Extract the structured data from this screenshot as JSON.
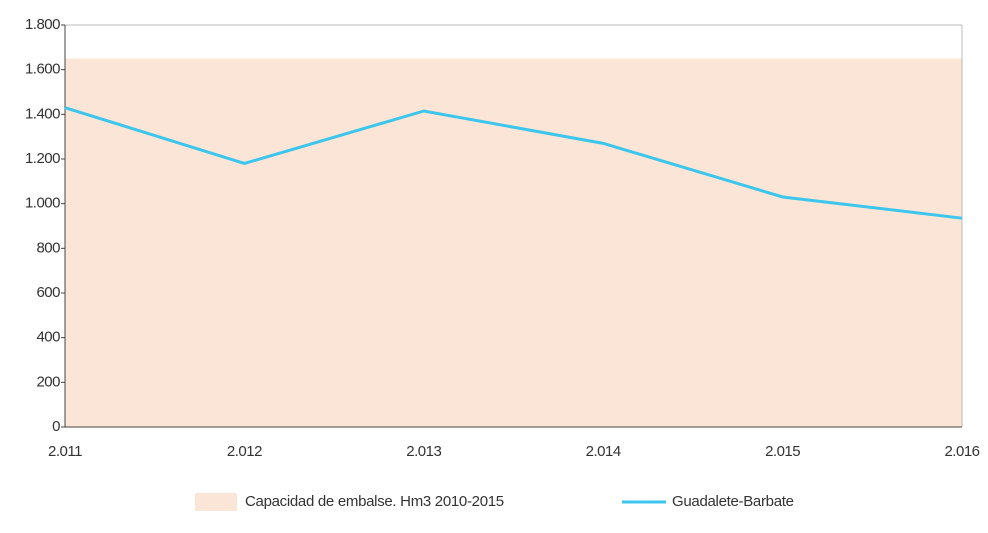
{
  "chart_data": {
    "type": "line",
    "categories": [
      "2.011",
      "2.012",
      "2.013",
      "2.014",
      "2.015",
      "2.016"
    ],
    "series": [
      {
        "name": "Capacidad de embalse. Hm3 2010-2015",
        "type": "area",
        "color": "#fbe5d6",
        "values": [
          1650,
          1650,
          1650,
          1650,
          1650,
          1650
        ]
      },
      {
        "name": "Guadalete-Barbate",
        "type": "line",
        "color": "#3cc6ee",
        "values": [
          1430,
          1180,
          1415,
          1270,
          1030,
          935
        ]
      }
    ],
    "ylim": [
      0,
      1800
    ],
    "yticks": [
      0,
      200,
      400,
      600,
      800,
      {
        "value": 1000,
        "label": "1.000"
      },
      {
        "value": 1200,
        "label": "1.200"
      },
      {
        "value": 1400,
        "label": "1.400"
      },
      {
        "value": 1600,
        "label": "1.600"
      },
      {
        "value": 1800,
        "label": "1.800"
      }
    ],
    "grid": false
  }
}
